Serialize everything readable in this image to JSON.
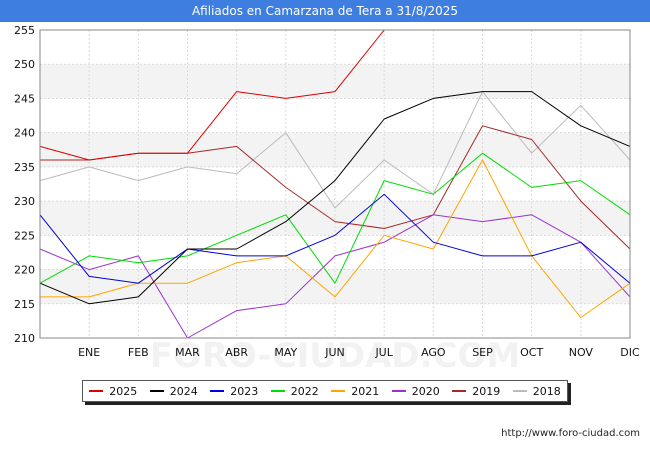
{
  "header": {
    "title": "Afiliados en Camarzana de Tera a 31/8/2025"
  },
  "footer": {
    "url": "http://www.foro-ciudad.com"
  },
  "watermark": "FORO-CIUDAD.COM",
  "chart_data": {
    "type": "line",
    "title": "Afiliados en Camarzana de Tera a 31/8/2025",
    "categories": [
      "",
      "ENE",
      "FEB",
      "MAR",
      "ABR",
      "MAY",
      "JUN",
      "JUL",
      "AGO",
      "SEP",
      "OCT",
      "NOV",
      "DIC"
    ],
    "xlabel": "",
    "ylabel": "",
    "ylim": [
      210,
      255
    ],
    "yticks": [
      210,
      215,
      220,
      225,
      230,
      235,
      240,
      245,
      250,
      255
    ],
    "grid": true,
    "legend_position": "bottom",
    "series": [
      {
        "name": "2025",
        "color": "#dd0000",
        "values": [
          238,
          236,
          237,
          237,
          246,
          245,
          246,
          255,
          null,
          null,
          null,
          null,
          null
        ]
      },
      {
        "name": "2024",
        "color": "#000000",
        "values": [
          218,
          215,
          216,
          223,
          223,
          227,
          233,
          242,
          245,
          246,
          246,
          241,
          238
        ]
      },
      {
        "name": "2023",
        "color": "#0000dd",
        "values": [
          228,
          219,
          218,
          223,
          222,
          222,
          225,
          231,
          224,
          222,
          222,
          224,
          218
        ]
      },
      {
        "name": "2022",
        "color": "#00dd00",
        "values": [
          218,
          222,
          221,
          222,
          225,
          228,
          218,
          233,
          231,
          237,
          232,
          233,
          228
        ]
      },
      {
        "name": "2021",
        "color": "#ffa500",
        "values": [
          216,
          216,
          218,
          218,
          221,
          222,
          216,
          225,
          223,
          236,
          222,
          213,
          218
        ]
      },
      {
        "name": "2020",
        "color": "#9a32cd",
        "values": [
          223,
          220,
          222,
          210,
          214,
          215,
          222,
          224,
          228,
          227,
          228,
          224,
          216
        ]
      },
      {
        "name": "2019",
        "color": "#a52a2a",
        "values": [
          236,
          236,
          237,
          237,
          238,
          232,
          227,
          226,
          228,
          241,
          239,
          230,
          223
        ]
      },
      {
        "name": "2018",
        "color": "#bbbbbb",
        "values": [
          233,
          235,
          233,
          235,
          234,
          240,
          229,
          236,
          231,
          246,
          237,
          244,
          236
        ]
      }
    ]
  }
}
